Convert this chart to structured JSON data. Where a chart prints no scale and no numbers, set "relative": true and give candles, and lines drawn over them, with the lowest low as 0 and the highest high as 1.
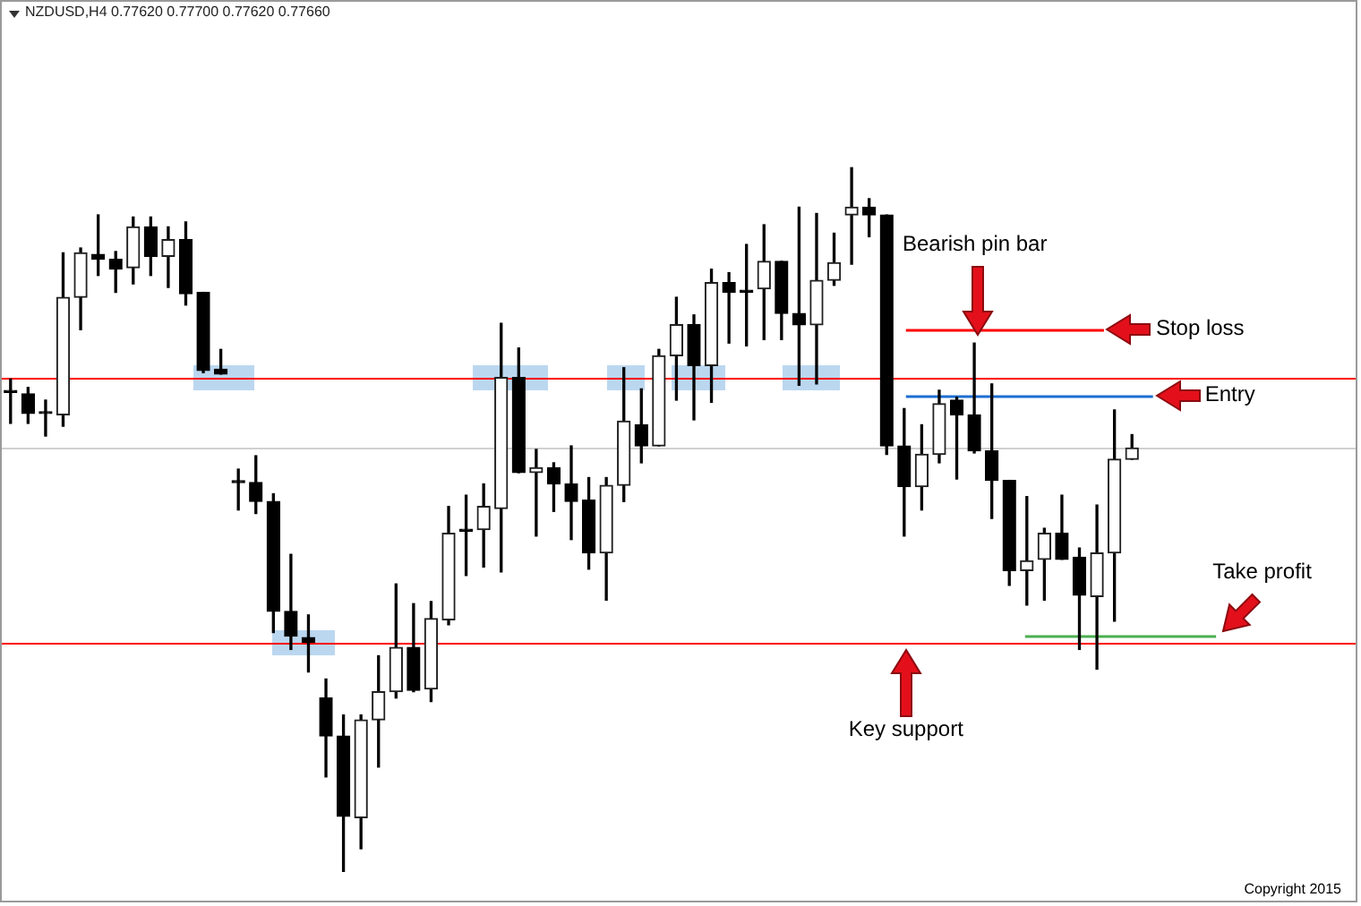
{
  "chart_data": {
    "type": "candlestick",
    "title": "NZDUSD,H4  0.77620 0.77700 0.77620 0.77660",
    "relative": true,
    "legend": false,
    "categories": [
      null,
      null,
      null,
      null,
      null,
      null,
      null,
      null,
      null,
      null,
      null,
      null,
      null,
      null,
      null,
      null,
      null,
      null,
      null,
      null,
      null,
      null,
      null,
      null,
      null,
      null,
      null,
      null,
      null,
      null,
      null,
      null,
      null,
      null,
      null,
      null,
      null,
      null,
      null,
      null,
      null,
      null,
      null,
      null,
      null,
      null,
      null,
      null,
      null,
      null,
      null,
      null,
      null,
      null,
      null,
      null,
      null,
      null,
      null,
      null,
      null,
      null,
      null,
      null,
      null
    ],
    "ohlc": [
      [
        0.681,
        0.7,
        0.637,
        0.681
      ],
      [
        0.679,
        0.688,
        0.637,
        0.651
      ],
      [
        0.651,
        0.67,
        0.619,
        0.651
      ],
      [
        0.649,
        0.879,
        0.633,
        0.816
      ],
      [
        0.816,
        0.886,
        0.77,
        0.879
      ],
      [
        0.877,
        0.933,
        0.847,
        0.87
      ],
      [
        0.87,
        0.881,
        0.823,
        0.856
      ],
      [
        0.858,
        0.93,
        0.835,
        0.916
      ],
      [
        0.916,
        0.93,
        0.847,
        0.874
      ],
      [
        0.874,
        0.916,
        0.83,
        0.898
      ],
      [
        0.898,
        0.923,
        0.805,
        0.821
      ],
      [
        0.823,
        0.823,
        0.709,
        0.712
      ],
      [
        0.714,
        0.742,
        0.707,
        0.707
      ],
      [
        0.553,
        0.572,
        0.514,
        0.553
      ],
      [
        0.553,
        0.591,
        0.509,
        0.526
      ],
      [
        0.526,
        0.537,
        0.34,
        0.37
      ],
      [
        0.37,
        0.451,
        0.316,
        0.335
      ],
      [
        0.333,
        0.365,
        0.284,
        0.326
      ],
      [
        0.247,
        0.274,
        0.135,
        0.193
      ],
      [
        0.193,
        0.223,
        0,
        0.079
      ],
      [
        0.077,
        0.223,
        0.033,
        0.216
      ],
      [
        0.216,
        0.307,
        0.149,
        0.256
      ],
      [
        0.256,
        0.409,
        0.247,
        0.319
      ],
      [
        0.319,
        0.381,
        0.256,
        0.258
      ],
      [
        0.26,
        0.384,
        0.242,
        0.36
      ],
      [
        0.358,
        0.519,
        0.351,
        0.481
      ],
      [
        0.484,
        0.535,
        0.421,
        0.484
      ],
      [
        0.486,
        0.551,
        0.433,
        0.519
      ],
      [
        0.516,
        0.779,
        0.426,
        0.702
      ],
      [
        0.702,
        0.744,
        0.567,
        0.567
      ],
      [
        0.567,
        0.6,
        0.477,
        0.574
      ],
      [
        0.574,
        0.581,
        0.512,
        0.551
      ],
      [
        0.551,
        0.605,
        0.472,
        0.526
      ],
      [
        0.528,
        0.56,
        0.43,
        0.453
      ],
      [
        0.453,
        0.56,
        0.386,
        0.549
      ],
      [
        0.549,
        0.716,
        0.526,
        0.64
      ],
      [
        0.635,
        0.686,
        0.581,
        0.605
      ],
      [
        0.605,
        0.742,
        0.605,
        0.733
      ],
      [
        0.733,
        0.816,
        0.67,
        0.777
      ],
      [
        0.777,
        0.791,
        0.642,
        0.719
      ],
      [
        0.719,
        0.856,
        0.667,
        0.837
      ],
      [
        0.837,
        0.851,
        0.751,
        0.823
      ],
      [
        0.826,
        0.891,
        0.747,
        0.823
      ],
      [
        0.828,
        0.919,
        0.756,
        0.867
      ],
      [
        0.867,
        0.867,
        0.756,
        0.793
      ],
      [
        0.793,
        0.944,
        0.691,
        0.777
      ],
      [
        0.777,
        0.935,
        0.693,
        0.84
      ],
      [
        0.84,
        0.907,
        0.833,
        0.865
      ],
      [
        0.933,
        1,
        0.863,
        0.944
      ],
      [
        0.944,
        0.956,
        0.902,
        0.933
      ],
      [
        0.933,
        0.933,
        0.593,
        0.605
      ],
      [
        0.605,
        0.658,
        0.477,
        0.547
      ],
      [
        0.547,
        0.635,
        0.514,
        0.593
      ],
      [
        0.593,
        0.684,
        0.581,
        0.665
      ],
      [
        0.67,
        0.674,
        0.558,
        0.649
      ],
      [
        0.649,
        0.751,
        0.595,
        0.598
      ],
      [
        0.598,
        0.693,
        0.502,
        0.556
      ],
      [
        0.556,
        0.556,
        0.407,
        0.428
      ],
      [
        0.428,
        0.533,
        0.379,
        0.442
      ],
      [
        0.444,
        0.488,
        0.386,
        0.481
      ],
      [
        0.481,
        0.535,
        0.444,
        0.444
      ],
      [
        0.447,
        0.46,
        0.316,
        0.393
      ],
      [
        0.391,
        0.521,
        0.288,
        0.453
      ],
      [
        0.453,
        0.656,
        0.356,
        0.586
      ],
      [
        0.586,
        0.621,
        0.586,
        0.602
      ]
    ],
    "ref_lines": [
      {
        "axis": "y",
        "value": 0.702,
        "color": "#ff0000"
      },
      {
        "axis": "y",
        "value": 0.326,
        "color": "#ff0000"
      },
      {
        "axis": "y",
        "value": 0.602,
        "color": "#d0d0d0"
      },
      {
        "axis": "y",
        "value": 0.77,
        "label": "Stop loss",
        "color": "#ff0000"
      },
      {
        "axis": "y",
        "value": 0.677,
        "label": "Entry",
        "color": "#1c6fd1"
      },
      {
        "axis": "y",
        "value": 0.335,
        "label": "Take profit",
        "color": "#4caf50"
      }
    ],
    "annotations": [
      "Bearish pin bar",
      "Key support",
      "Copyright 2015"
    ]
  }
}
